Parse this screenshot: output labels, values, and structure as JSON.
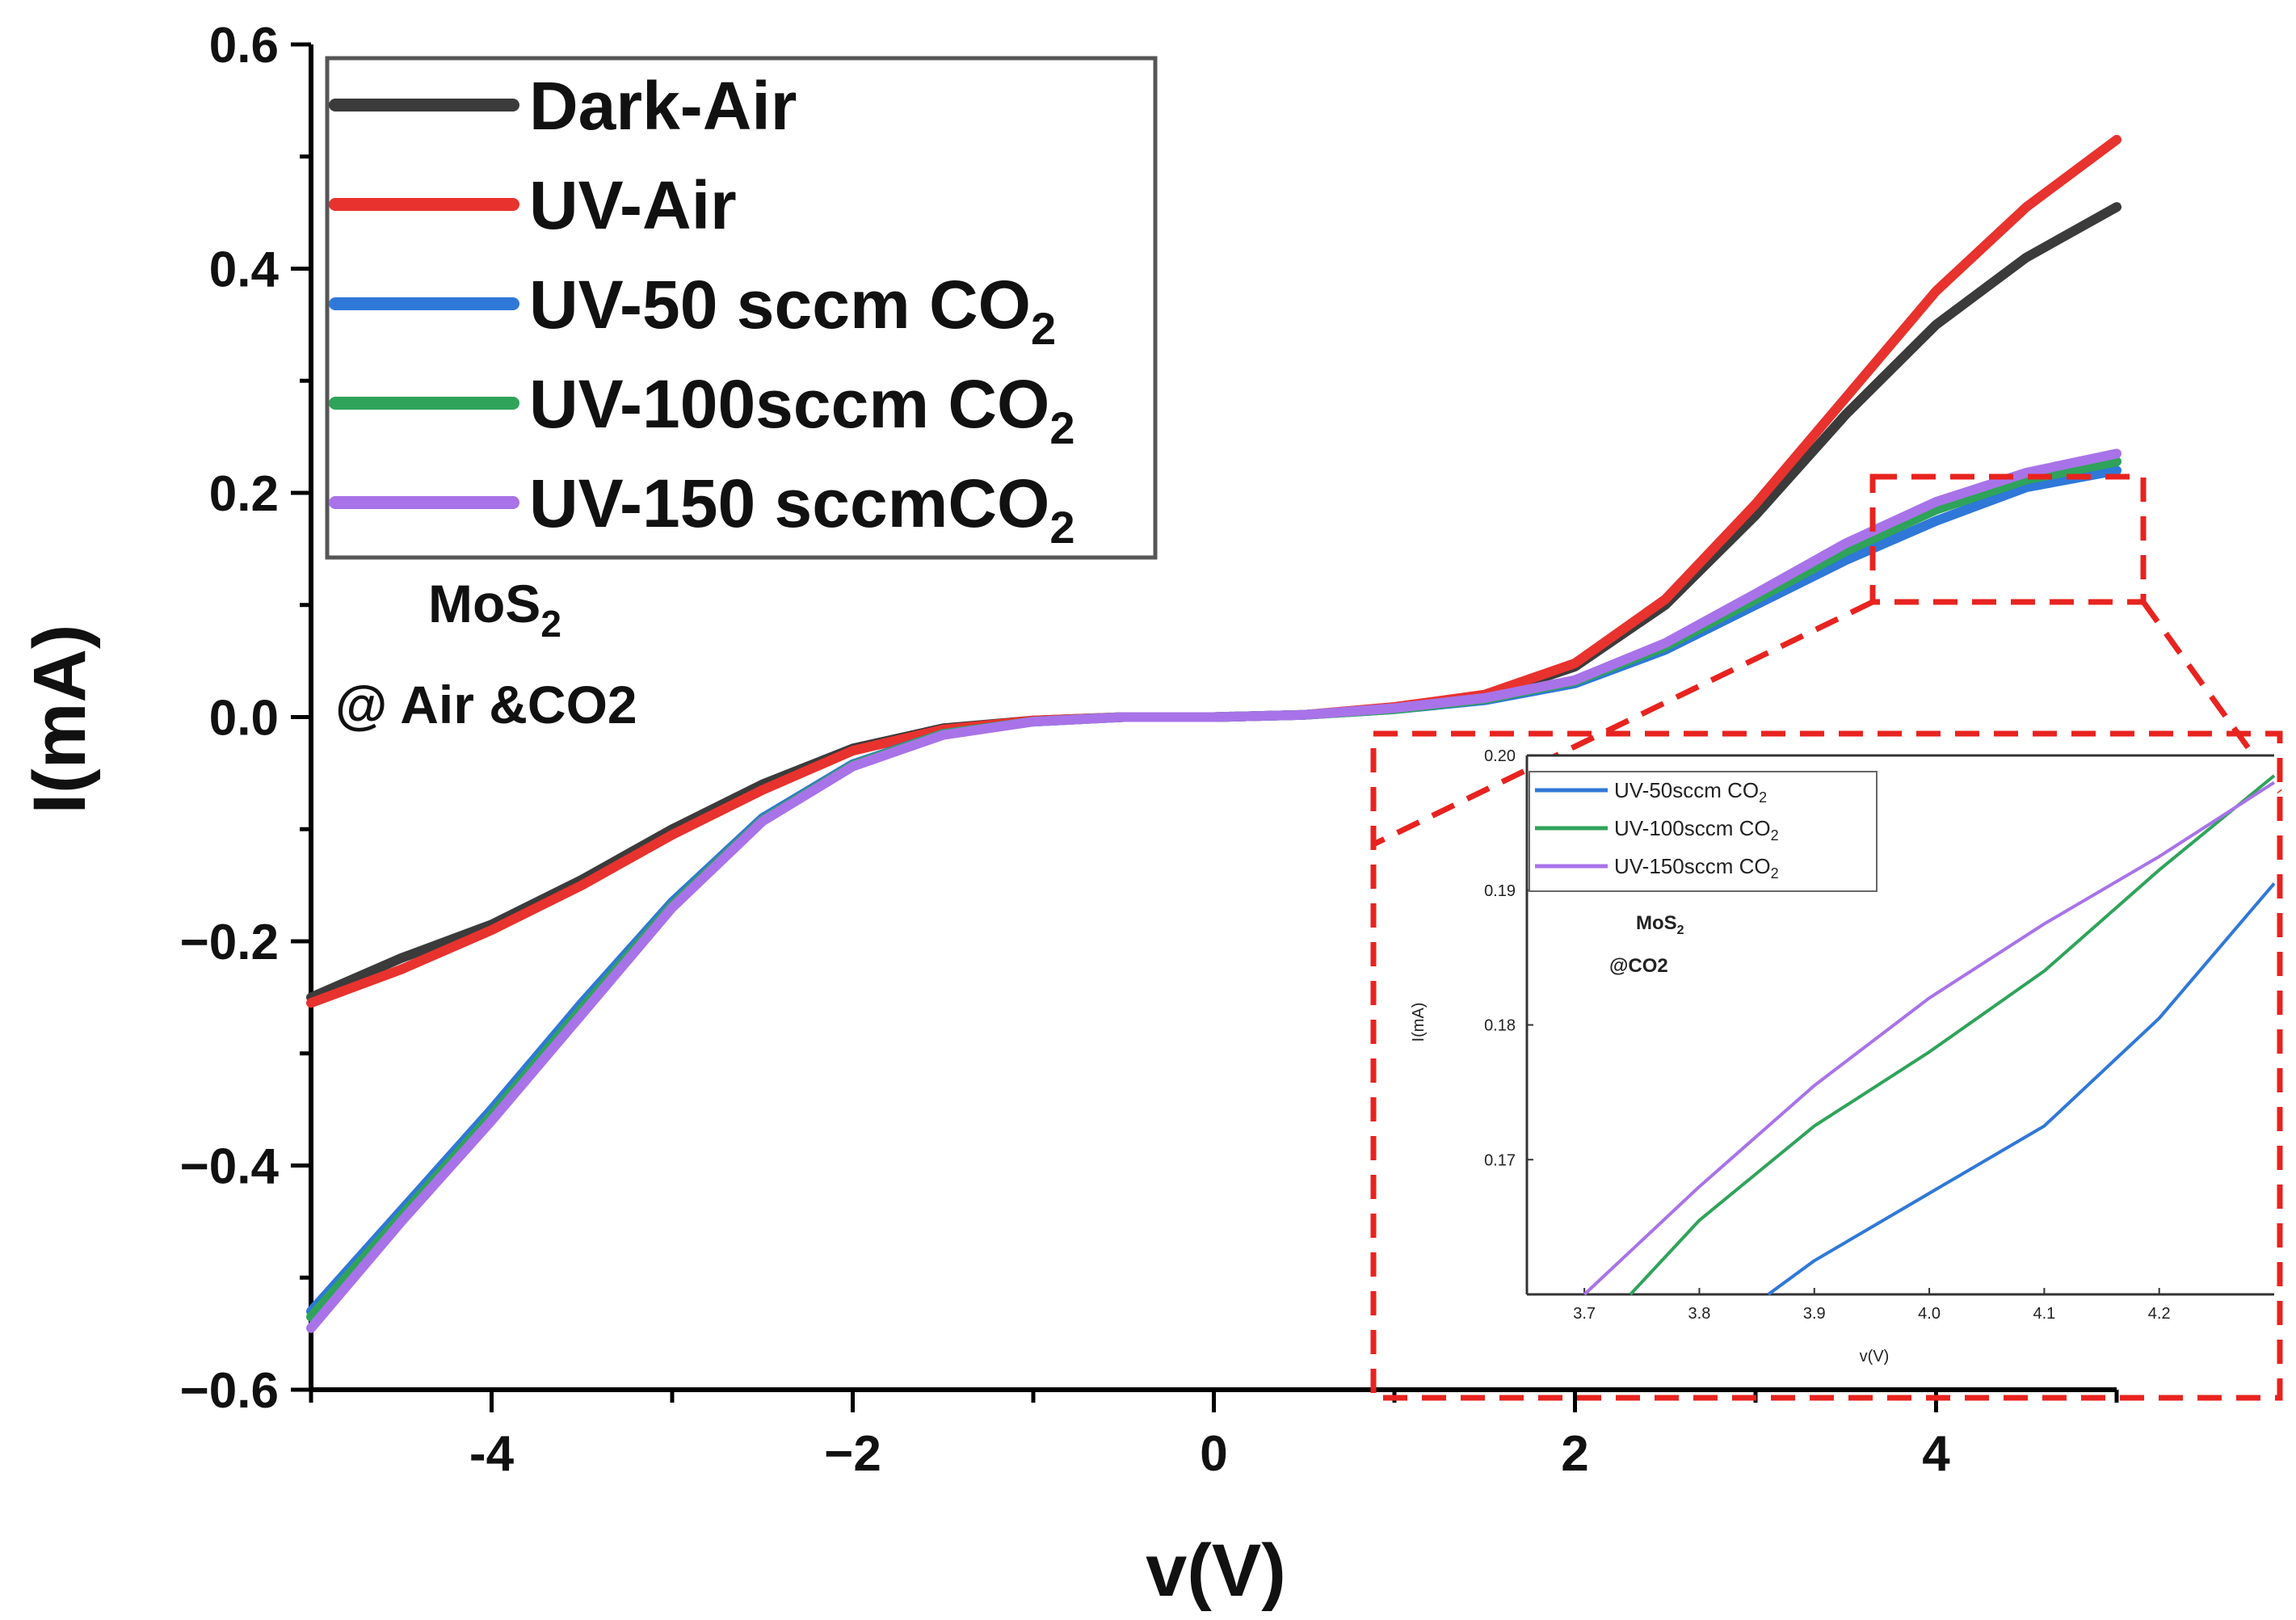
{
  "chart_data": [
    {
      "type": "line",
      "xlabel": "v(V)",
      "ylabel": "I(mA)",
      "xlim": [
        -5,
        5
      ],
      "ylim": [
        -0.6,
        0.6
      ],
      "xticks": [
        -4,
        -2,
        0,
        2,
        4
      ],
      "xtick_labels": [
        "-4",
        "−2",
        "0",
        "2",
        "4"
      ],
      "yticks": [
        0.6,
        0.4,
        0.2,
        0.0,
        -0.2,
        -0.4,
        -0.6
      ],
      "ytick_labels": [
        "0.6",
        "0.4",
        "0.2",
        "0.0",
        "−0.2",
        "−0.4",
        "−0.6"
      ],
      "legend_position": "top-left",
      "annotations": {
        "material": "MoS",
        "material_sub": "2",
        "condition": "@ Air &CO2"
      },
      "series": [
        {
          "name": "Dark-Air",
          "label_main": "Dark-Air",
          "label_sub": "",
          "color": "#3b3b3b",
          "x": [
            -5,
            -4.5,
            -4,
            -3.5,
            -3,
            -2.5,
            -2,
            -1.5,
            -1,
            -0.5,
            0,
            0.5,
            1,
            1.5,
            2,
            2.5,
            3,
            3.5,
            4,
            4.5,
            5
          ],
          "y": [
            -0.25,
            -0.215,
            -0.185,
            -0.145,
            -0.1,
            -0.06,
            -0.028,
            -0.01,
            -0.003,
            0,
            0,
            0.002,
            0.008,
            0.018,
            0.045,
            0.1,
            0.18,
            0.27,
            0.35,
            0.41,
            0.455
          ]
        },
        {
          "name": "UV-Air",
          "label_main": "UV-Air",
          "label_sub": "",
          "color": "#e8322e",
          "x": [
            -5,
            -4.5,
            -4,
            -3.5,
            -3,
            -2.5,
            -2,
            -1.5,
            -1,
            -0.5,
            0,
            0.5,
            1,
            1.5,
            2,
            2.5,
            3,
            3.5,
            4,
            4.5,
            5
          ],
          "y": [
            -0.255,
            -0.225,
            -0.19,
            -0.15,
            -0.105,
            -0.065,
            -0.03,
            -0.011,
            -0.003,
            0,
            0,
            0.002,
            0.009,
            0.02,
            0.048,
            0.105,
            0.19,
            0.285,
            0.38,
            0.455,
            0.515
          ]
        },
        {
          "name": "UV-50 sccm CO2",
          "label_main": "UV-50 sccm  CO",
          "label_sub": "2",
          "color": "#2f78d8",
          "x": [
            -5,
            -4.5,
            -4,
            -3.5,
            -3,
            -2.5,
            -2,
            -1.5,
            -1,
            -0.5,
            0,
            0.5,
            1,
            1.5,
            2,
            2.5,
            3,
            3.5,
            4,
            4.5,
            5
          ],
          "y": [
            -0.53,
            -0.44,
            -0.35,
            -0.255,
            -0.165,
            -0.09,
            -0.042,
            -0.015,
            -0.004,
            0,
            0,
            0.002,
            0.007,
            0.015,
            0.03,
            0.06,
            0.1,
            0.14,
            0.175,
            0.205,
            0.22
          ]
        },
        {
          "name": "UV-100 sccm CO2",
          "label_main": "UV-100sccm CO",
          "label_sub": "2",
          "color": "#2fa35a",
          "x": [
            -5,
            -4.5,
            -4,
            -3.5,
            -3,
            -2.5,
            -2,
            -1.5,
            -1,
            -0.5,
            0,
            0.5,
            1,
            1.5,
            2,
            2.5,
            3,
            3.5,
            4,
            4.5,
            5
          ],
          "y": [
            -0.535,
            -0.445,
            -0.355,
            -0.26,
            -0.168,
            -0.092,
            -0.043,
            -0.015,
            -0.004,
            0,
            0,
            0.002,
            0.007,
            0.016,
            0.032,
            0.063,
            0.105,
            0.148,
            0.185,
            0.212,
            0.228
          ]
        },
        {
          "name": "UV-150 sccm CO2",
          "label_main": "UV-150 sccmCO",
          "label_sub": "2",
          "color": "#a873e8",
          "x": [
            -5,
            -4.5,
            -4,
            -3.5,
            -3,
            -2.5,
            -2,
            -1.5,
            -1,
            -0.5,
            0,
            0.5,
            1,
            1.5,
            2,
            2.5,
            3,
            3.5,
            4,
            4.5,
            5
          ],
          "y": [
            -0.545,
            -0.45,
            -0.36,
            -0.265,
            -0.17,
            -0.093,
            -0.044,
            -0.016,
            -0.004,
            0,
            0,
            0.002,
            0.008,
            0.017,
            0.033,
            0.066,
            0.11,
            0.155,
            0.192,
            0.218,
            0.235
          ]
        }
      ]
    },
    {
      "type": "line",
      "role": "inset",
      "xlabel": "v(V)",
      "ylabel": "I(mA)",
      "xlim": [
        3.65,
        4.3
      ],
      "ylim": [
        0.16,
        0.2
      ],
      "xticks": [
        3.7,
        3.8,
        3.9,
        4.0,
        4.1,
        4.2
      ],
      "xtick_labels": [
        "3.7",
        "3.8",
        "3.9",
        "4.0",
        "4.1",
        "4.2"
      ],
      "yticks": [
        0.2,
        0.19,
        0.18,
        0.17
      ],
      "ytick_labels": [
        "0.20",
        "0.19",
        "0.18",
        "0.17"
      ],
      "legend_position": "top-left",
      "annotations": {
        "material": "MoS",
        "material_sub": "2",
        "condition": "@CO2"
      },
      "series": [
        {
          "name": "UV-50sccm CO2",
          "label_main": "UV-50sccm   CO",
          "label_sub": "2",
          "color": "#2f78d8",
          "x": [
            3.86,
            3.9,
            4.0,
            4.1,
            4.2,
            4.3
          ],
          "y": [
            0.16,
            0.1625,
            0.1675,
            0.1725,
            0.1805,
            0.1905
          ]
        },
        {
          "name": "UV-100sccm CO2",
          "label_main": "UV-100sccm CO",
          "label_sub": "2",
          "color": "#2fa35a",
          "x": [
            3.74,
            3.8,
            3.9,
            4.0,
            4.1,
            4.2,
            4.3
          ],
          "y": [
            0.16,
            0.1655,
            0.1725,
            0.178,
            0.184,
            0.1915,
            0.1985
          ]
        },
        {
          "name": "UV-150sccm CO2",
          "label_main": "UV-150sccm CO",
          "label_sub": "2",
          "color": "#a873e8",
          "x": [
            3.7,
            3.8,
            3.9,
            4.0,
            4.1,
            4.2,
            4.3
          ],
          "y": [
            0.16,
            0.168,
            0.1755,
            0.182,
            0.1875,
            0.1925,
            0.198
          ]
        }
      ]
    }
  ]
}
